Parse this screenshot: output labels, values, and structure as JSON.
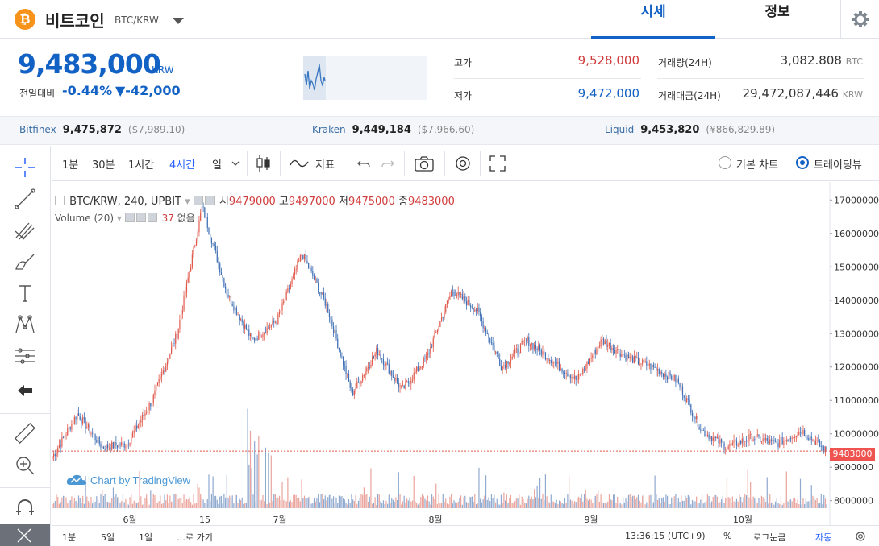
{
  "header": {
    "coin_symbol": "₿",
    "coin_name": "비트코인",
    "pair": "BTC/KRW",
    "tabs": [
      "시세",
      "정보"
    ]
  },
  "price": {
    "current": "9,483,000",
    "unit": "KRW",
    "change_label": "전일대비",
    "change_rate": "-0.44%",
    "change_amount": "▼-42,000"
  },
  "stats": {
    "high_label": "고가",
    "high": "9,528,000",
    "low_label": "저가",
    "low": "9,472,000",
    "volume_label": "거래량(24H)",
    "volume": "3,082.808",
    "volume_unit": "BTC",
    "value_label": "거래대금(24H)",
    "value": "29,472,087,446",
    "value_unit": "KRW"
  },
  "exchanges": [
    {
      "name": "Bitfinex",
      "price": "9,475,872",
      "usd": "($7,989.10)"
    },
    {
      "name": "Kraken",
      "price": "9,449,184",
      "usd": "($7,966.60)"
    },
    {
      "name": "Liquid",
      "price": "9,453,820",
      "usd": "(¥866,829.89)"
    }
  ],
  "toolbar": {
    "intervals": [
      "1분",
      "30분",
      "1시간",
      "4시간",
      "일"
    ],
    "active_interval": "4시간",
    "indicators_label": "지표",
    "basic_chart": "기본 차트",
    "tradingview": "트레이딩뷰"
  },
  "legend": {
    "symbol": "BTC/KRW, 240, UPBIT",
    "open_label": "시",
    "open": "9479000",
    "high_label": "고",
    "high": "9497000",
    "low_label": "저",
    "low": "9475000",
    "close_label": "종",
    "close": "9483000",
    "volume_name": "Volume (20)",
    "volume_value": "37",
    "volume_extra": "없음"
  },
  "watermark": "Chart by TradingView",
  "price_tag": "9483000",
  "bottom": {
    "ranges": [
      "1분",
      "5일",
      "1일",
      "…로 가기"
    ],
    "time": "13:36:15 (UTC+9)",
    "percent": "%",
    "log": "로그눈금",
    "auto": "자동"
  },
  "colors": {
    "up": "#d03b3b",
    "down": "#1261c4",
    "accent": "#1261c4"
  },
  "chart_data": {
    "type": "candlestick",
    "symbol": "BTC/KRW, 240, UPBIT",
    "y_ticks": [
      17000000,
      16000000,
      15000000,
      14000000,
      13000000,
      12000000,
      11000000,
      10000000,
      9000000,
      8000000
    ],
    "x_ticks": [
      "6월",
      "15",
      "7월",
      "8월",
      "9월",
      "10월"
    ],
    "ylim": [
      7800000,
      17200000
    ],
    "last_price": 9483000,
    "approx_close_path": [
      {
        "t": "5/27",
        "v": 9300000
      },
      {
        "t": "6/01",
        "v": 10600000
      },
      {
        "t": "6/08",
        "v": 9600000
      },
      {
        "t": "6/15",
        "v": 9700000
      },
      {
        "t": "6/20",
        "v": 11000000
      },
      {
        "t": "6/24",
        "v": 13000000
      },
      {
        "t": "6/26",
        "v": 16800000
      },
      {
        "t": "6/28",
        "v": 14200000
      },
      {
        "t": "7/02",
        "v": 12800000
      },
      {
        "t": "7/05",
        "v": 13400000
      },
      {
        "t": "7/09",
        "v": 15400000
      },
      {
        "t": "7/12",
        "v": 13800000
      },
      {
        "t": "7/17",
        "v": 11200000
      },
      {
        "t": "7/22",
        "v": 12500000
      },
      {
        "t": "7/28",
        "v": 11300000
      },
      {
        "t": "8/02",
        "v": 12300000
      },
      {
        "t": "8/06",
        "v": 14300000
      },
      {
        "t": "8/12",
        "v": 13700000
      },
      {
        "t": "8/17",
        "v": 12000000
      },
      {
        "t": "8/22",
        "v": 12800000
      },
      {
        "t": "8/28",
        "v": 12200000
      },
      {
        "t": "9/02",
        "v": 11600000
      },
      {
        "t": "9/06",
        "v": 12800000
      },
      {
        "t": "9/12",
        "v": 12300000
      },
      {
        "t": "9/18",
        "v": 12000000
      },
      {
        "t": "9/22",
        "v": 11600000
      },
      {
        "t": "9/24",
        "v": 10100000
      },
      {
        "t": "9/28",
        "v": 9600000
      },
      {
        "t": "10/03",
        "v": 9900000
      },
      {
        "t": "10/08",
        "v": 9700000
      },
      {
        "t": "10/12",
        "v": 10100000
      },
      {
        "t": "10/16",
        "v": 9483000
      }
    ]
  }
}
